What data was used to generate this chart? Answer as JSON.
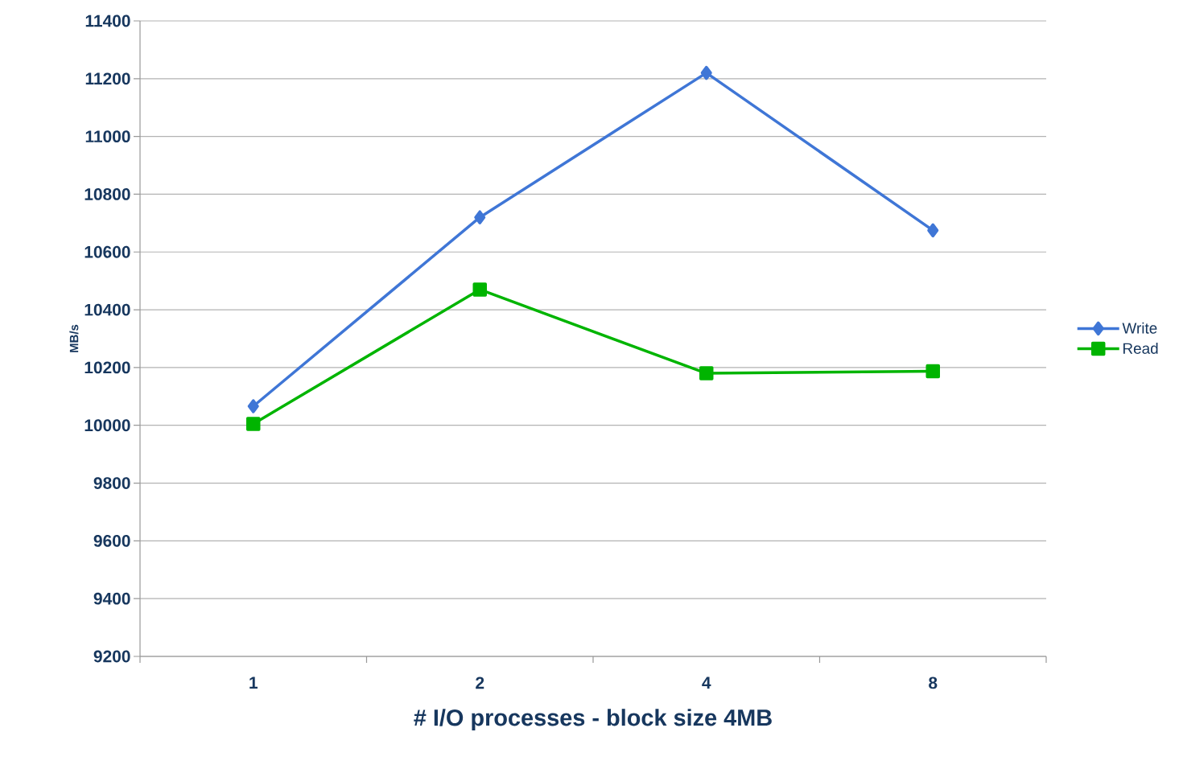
{
  "chart_data": {
    "type": "line",
    "xlabel": "# I/O processes - block size 4MB",
    "ylabel": "MB/s",
    "categories": [
      "1",
      "2",
      "4",
      "8"
    ],
    "series": [
      {
        "name": "Write",
        "color": "#3f76d6",
        "marker": "diamond",
        "values": [
          10066,
          10720,
          11220,
          10675
        ]
      },
      {
        "name": "Read",
        "color": "#00b400",
        "marker": "square",
        "values": [
          10005,
          10470,
          10180,
          10187
        ]
      }
    ],
    "ylim": [
      9200,
      11400
    ],
    "yticks": [
      9200,
      9400,
      9600,
      9800,
      10000,
      10200,
      10400,
      10600,
      10800,
      11000,
      11200,
      11400
    ],
    "grid": "y",
    "legend": "right",
    "line_style": "solid"
  }
}
